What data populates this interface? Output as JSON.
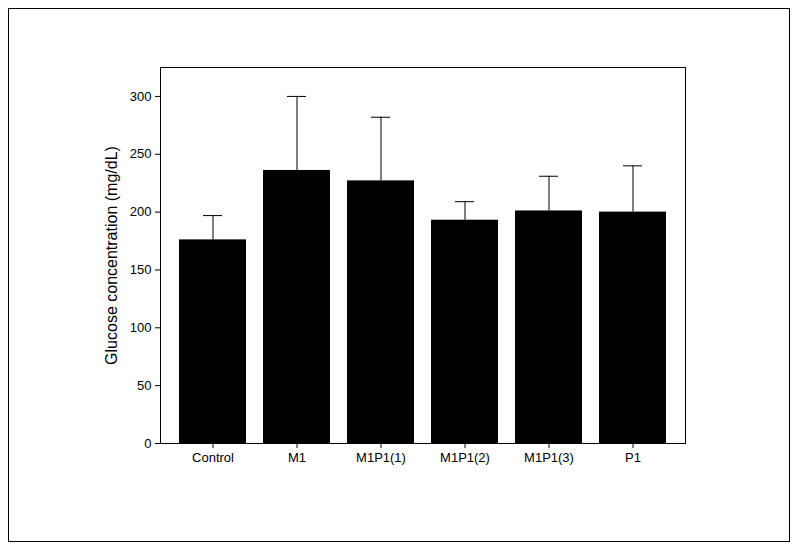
{
  "chart_data": {
    "type": "bar",
    "y_label": "Glucose concentration (mg/dL)",
    "categories": [
      "Control",
      "M1",
      "M1P1(1)",
      "M1P1(2)",
      "M1P1(3)",
      "P1"
    ],
    "values": [
      176,
      236,
      227,
      193,
      201,
      200
    ],
    "errors": [
      21,
      64,
      55,
      16,
      30,
      40
    ],
    "color": "#000000",
    "ylim": [
      0,
      325
    ],
    "yticks": [
      0,
      50,
      100,
      150,
      200,
      250,
      300
    ],
    "grid": false
  }
}
